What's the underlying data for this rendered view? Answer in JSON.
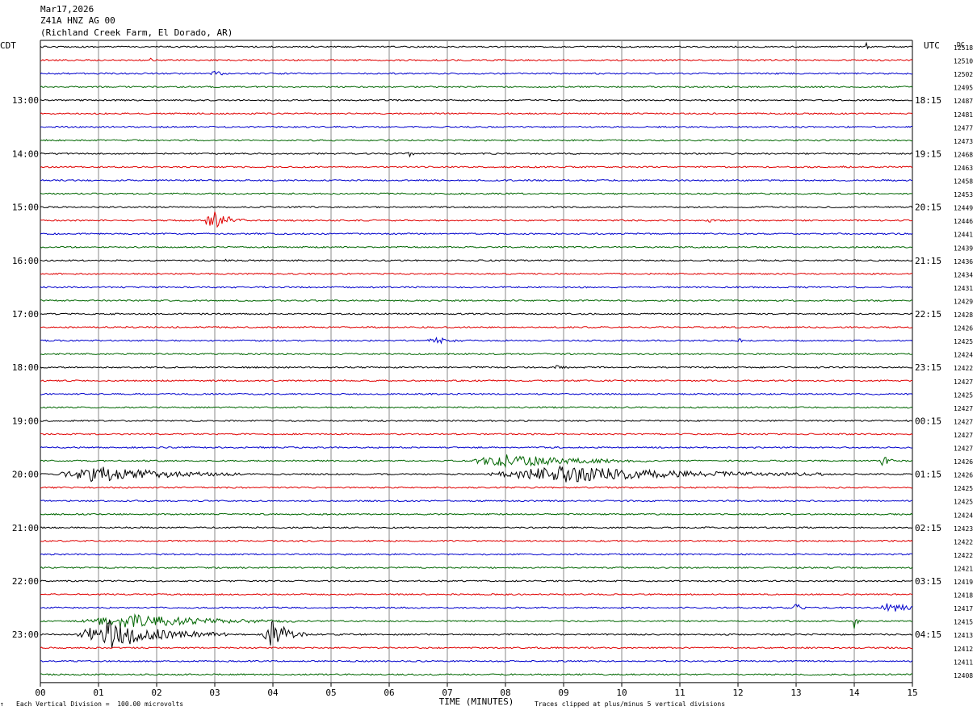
{
  "header": {
    "date": "Mar17,2026",
    "station": "Z41A HNZ AG 00",
    "location": "(Richland Creek Farm, El Dorado, AR)"
  },
  "left_zone_label": "CDT",
  "right_zone_label": "UTC",
  "dc_label": "DC",
  "footer": {
    "scale": "Each Vertical Division =  100.00 microvolts",
    "clip": "Traces clipped at plus/minus 5 vertical divisions",
    "corner_mark": "↑"
  },
  "colors": {
    "trace": [
      "#000000",
      "#e00000",
      "#0000cc",
      "#006600"
    ],
    "grid": "#888888"
  },
  "chart_data": {
    "type": "line",
    "xlabel": "TIME (MINUTES)",
    "x_ticks": [
      "00",
      "01",
      "02",
      "03",
      "04",
      "05",
      "06",
      "07",
      "08",
      "09",
      "10",
      "11",
      "12",
      "13",
      "14",
      "15"
    ],
    "xlim": [
      0,
      15
    ],
    "left_time_labels": [
      "13:00",
      "14:00",
      "15:00",
      "16:00",
      "17:00",
      "18:00",
      "19:00",
      "20:00",
      "21:00",
      "22:00",
      "23:00"
    ],
    "right_time_labels": [
      "18:15",
      "19:15",
      "20:15",
      "21:15",
      "22:15",
      "23:15",
      "00:15",
      "01:15",
      "02:15",
      "03:15",
      "04:15"
    ],
    "trace_count": 48,
    "dc_offsets": [
      12518,
      12510,
      12502,
      12495,
      12487,
      12481,
      12477,
      12473,
      12468,
      12463,
      12458,
      12453,
      12449,
      12446,
      12441,
      12439,
      12436,
      12434,
      12431,
      12429,
      12428,
      12426,
      12425,
      12424,
      12422,
      12427,
      12425,
      12427,
      12427,
      12427,
      12427,
      12426,
      12426,
      12425,
      12425,
      12424,
      12423,
      12422,
      12422,
      12421,
      12419,
      12418,
      12417,
      12415,
      12413,
      12412,
      12411,
      12408
    ],
    "events": [
      {
        "trace": 0,
        "minute": 14.2,
        "amp": 8,
        "dur": 0.05
      },
      {
        "trace": 1,
        "minute": 1.9,
        "amp": 4,
        "dur": 0.05
      },
      {
        "trace": 2,
        "minute": 3.0,
        "amp": 3,
        "dur": 0.3
      },
      {
        "trace": 8,
        "minute": 6.35,
        "amp": 3,
        "dur": 0.1
      },
      {
        "trace": 9,
        "minute": 13.8,
        "amp": 3,
        "dur": 0.05
      },
      {
        "trace": 13,
        "minute": 2.95,
        "amp": 16,
        "dur": 0.55
      },
      {
        "trace": 13,
        "minute": 11.5,
        "amp": 3,
        "dur": 0.1
      },
      {
        "trace": 16,
        "minute": 3.15,
        "amp": 3,
        "dur": 0.1
      },
      {
        "trace": 22,
        "minute": 6.8,
        "amp": 4,
        "dur": 0.5
      },
      {
        "trace": 22,
        "minute": 12.0,
        "amp": 5,
        "dur": 0.1
      },
      {
        "trace": 24,
        "minute": 8.9,
        "amp": 3,
        "dur": 0.2
      },
      {
        "trace": 31,
        "minute": 8.0,
        "amp": 8,
        "dur": 2.5
      },
      {
        "trace": 31,
        "minute": 14.5,
        "amp": 7,
        "dur": 0.2
      },
      {
        "trace": 32,
        "minute": 1.0,
        "amp": 10,
        "dur": 2.5
      },
      {
        "trace": 32,
        "minute": 9.0,
        "amp": 10,
        "dur": 4.5
      },
      {
        "trace": 42,
        "minute": 13.0,
        "amp": 5,
        "dur": 0.2
      },
      {
        "trace": 42,
        "minute": 14.6,
        "amp": 9,
        "dur": 0.5
      },
      {
        "trace": 43,
        "minute": 1.5,
        "amp": 8,
        "dur": 3
      },
      {
        "trace": 43,
        "minute": 14.0,
        "amp": 10,
        "dur": 0.1
      },
      {
        "trace": 44,
        "minute": 1.2,
        "amp": 18,
        "dur": 2
      },
      {
        "trace": 44,
        "minute": 4.0,
        "amp": 18,
        "dur": 0.6
      }
    ]
  }
}
